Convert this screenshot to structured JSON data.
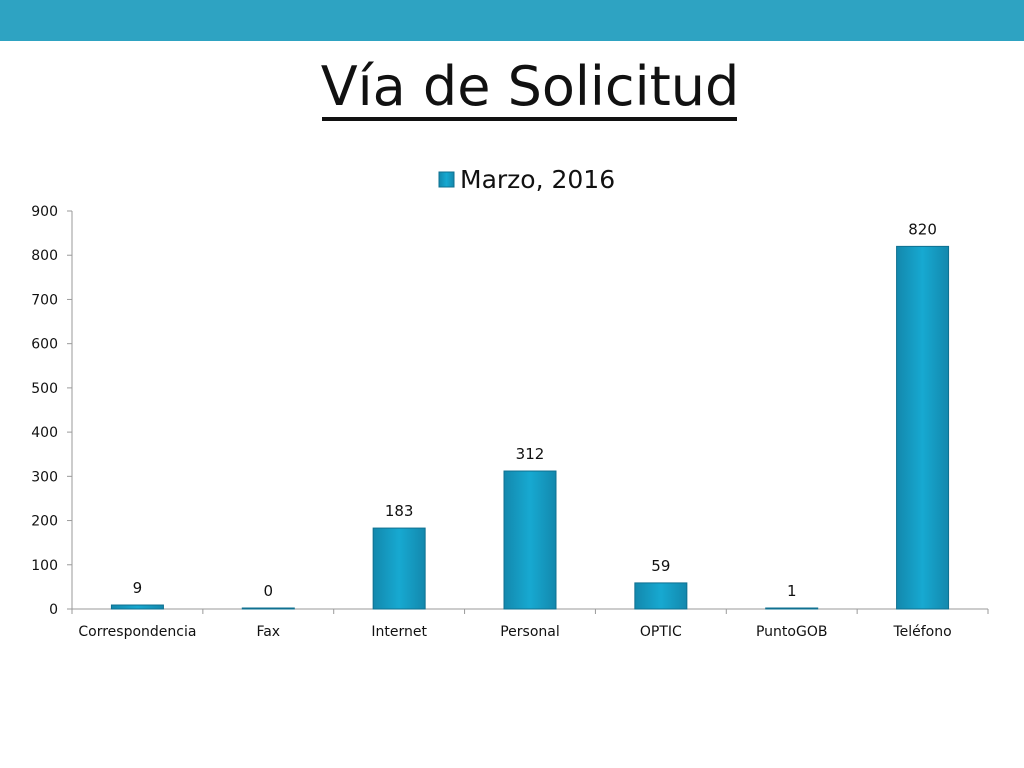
{
  "slide": {
    "title": "Vía de Solicitud",
    "bar_color": "#2ea3c2"
  },
  "chart_data": {
    "type": "bar",
    "categories": [
      "Correspondencia",
      "Fax",
      "Internet",
      "Personal",
      "OPTIC",
      "PuntoGOB",
      "Teléfono"
    ],
    "series": [
      {
        "name": "Marzo, 2016",
        "values": [
          9,
          0,
          183,
          312,
          59,
          1,
          820
        ]
      }
    ],
    "data_labels": [
      "9",
      "0",
      "183",
      "312",
      "59",
      "1",
      "820"
    ],
    "ylim": [
      0,
      900
    ],
    "yticks": [
      0,
      100,
      200,
      300,
      400,
      500,
      600,
      700,
      800,
      900
    ],
    "grid": false,
    "legend": "top",
    "bar_color": "#17a9d1",
    "bar_color_dark": "#1388ad"
  }
}
